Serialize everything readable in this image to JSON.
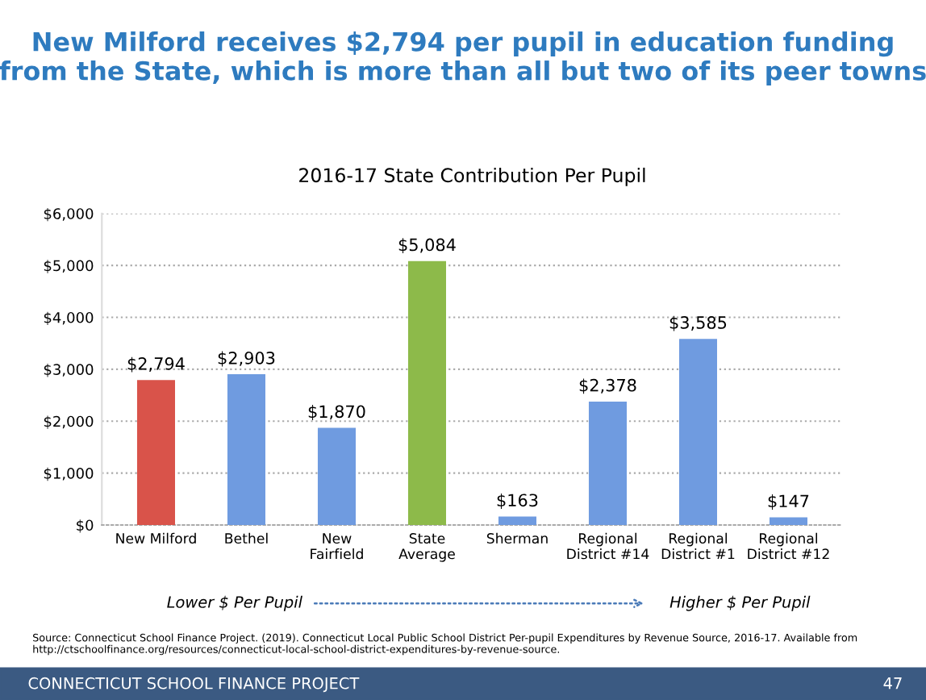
{
  "chart_data": {
    "type": "bar",
    "title": "New Milford receives $2,794 per pupil in education funding\nfrom the State, which is more than all but two of its peer towns",
    "subtitle": "2016-17 State Contribution Per Pupil",
    "categories": [
      "New Milford",
      "Bethel",
      "New\nFairfield",
      "State\nAverage",
      "Sherman",
      "Regional\nDistrict #14",
      "Regional\nDistrict #1",
      "Regional\nDistrict #12"
    ],
    "values": [
      2794,
      2903,
      1870,
      5084,
      163,
      2378,
      3585,
      147
    ],
    "colors": [
      "#d9534a",
      "#6f9be0",
      "#6f9be0",
      "#8dba4a",
      "#6f9be0",
      "#6f9be0",
      "#6f9be0",
      "#6f9be0"
    ],
    "value_labels": [
      "$2,794",
      "$2,903",
      "$1,870",
      "$5,084",
      "$163",
      "$2,378",
      "$3,585",
      "$147"
    ],
    "ylim": [
      0,
      6000
    ],
    "yticks": [
      {
        "value": 0,
        "label": "$0"
      },
      {
        "value": 1000,
        "label": "$1,000"
      },
      {
        "value": 2000,
        "label": "$2,000"
      },
      {
        "value": 3000,
        "label": "$3,000"
      },
      {
        "value": 4000,
        "label": "$4,000"
      },
      {
        "value": 5000,
        "label": "$5,000"
      },
      {
        "value": 6000,
        "label": "$6,000"
      }
    ],
    "grid": "y",
    "legend": false,
    "annotations": [
      "Lower $ Per Pupil",
      "Higher $ Per Pupil",
      "Source: Connecticut School Finance Project. (2019). Connecticut Local Public School District Per-pupil Expenditures by Revenue Source, 2016-17. Available from http://ctschoolfinance.org/resources/connecticut-local-school-district-expenditures-by-revenue-source.",
      "CONNECTICUT SCHOOL FINANCE PROJECT",
      "47"
    ]
  }
}
